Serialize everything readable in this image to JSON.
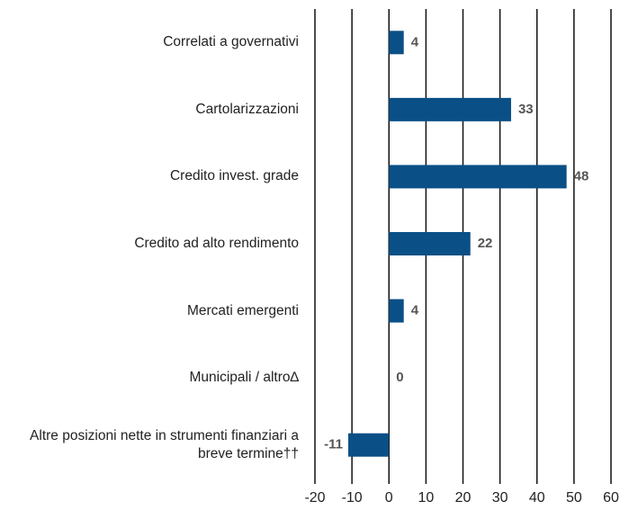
{
  "chart_data": {
    "type": "bar",
    "orientation": "horizontal",
    "categories": [
      "Correlati a governativi",
      "Cartolarizzazioni",
      "Credito invest. grade",
      "Credito ad alto rendimento",
      "Mercati emergenti",
      "Municipali / altro∆",
      "Altre posizioni nette in strumenti finanziari a breve termine††"
    ],
    "values": [
      4,
      33,
      48,
      22,
      4,
      0,
      -11
    ],
    "color": "#0a4f86",
    "xlim": [
      -20,
      60
    ],
    "xticks": [
      -20,
      -10,
      0,
      10,
      20,
      30,
      40,
      50,
      60
    ],
    "grid": true
  }
}
